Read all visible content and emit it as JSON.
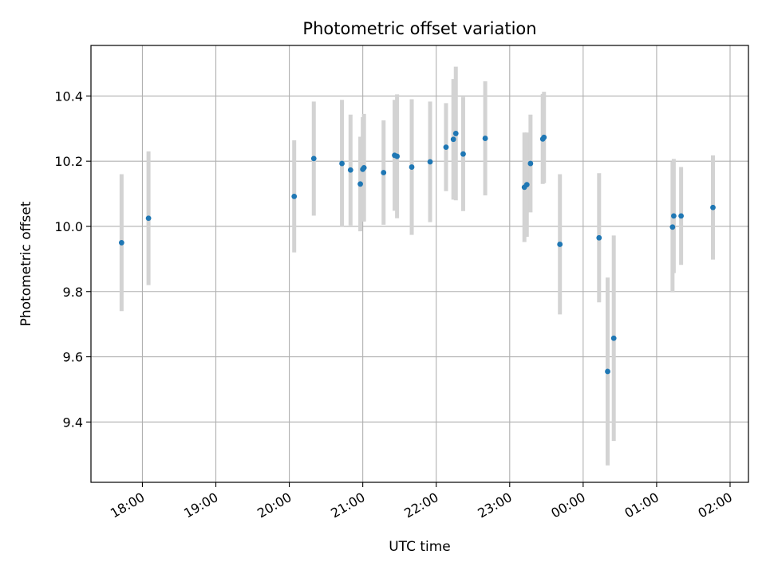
{
  "chart_data": {
    "type": "scatter",
    "title": "Photometric offset variation",
    "xlabel": "UTC time",
    "ylabel": "Photometric offset",
    "x_axis": "time (hours after 18:00 UTC; values past 24:00 are after midnight)",
    "xlim": [
      17.3,
      26.25
    ],
    "ylim": [
      9.215,
      10.555
    ],
    "grid": true,
    "x_ticks": [
      {
        "value": 18,
        "label": "18:00"
      },
      {
        "value": 19,
        "label": "19:00"
      },
      {
        "value": 20,
        "label": "20:00"
      },
      {
        "value": 21,
        "label": "21:00"
      },
      {
        "value": 22,
        "label": "22:00"
      },
      {
        "value": 23,
        "label": "23:00"
      },
      {
        "value": 24,
        "label": "00:00"
      },
      {
        "value": 25,
        "label": "01:00"
      },
      {
        "value": 26,
        "label": "02:00"
      }
    ],
    "y_ticks": [
      {
        "value": 9.4,
        "label": "9.4"
      },
      {
        "value": 9.6,
        "label": "9.6"
      },
      {
        "value": 9.8,
        "label": "9.8"
      },
      {
        "value": 10.0,
        "label": "10.0"
      },
      {
        "value": 10.2,
        "label": "10.2"
      },
      {
        "value": 10.4,
        "label": "10.4"
      }
    ],
    "marker_color": "#1f77b4",
    "errorbar_color": "#d3d3d3",
    "points": [
      {
        "time": "17:43",
        "y": 9.95,
        "err": 0.21
      },
      {
        "time": "18:05",
        "y": 10.025,
        "err": 0.205
      },
      {
        "time": "20:04",
        "y": 10.092,
        "err": 0.172
      },
      {
        "time": "20:20",
        "y": 10.208,
        "err": 0.175
      },
      {
        "time": "20:43",
        "y": 10.193,
        "err": 0.195
      },
      {
        "time": "20:50",
        "y": 10.173,
        "err": 0.17
      },
      {
        "time": "20:58",
        "y": 10.13,
        "err": 0.145
      },
      {
        "time": "21:00",
        "y": 10.175,
        "err": 0.16
      },
      {
        "time": "21:01",
        "y": 10.18,
        "err": 0.165
      },
      {
        "time": "21:17",
        "y": 10.165,
        "err": 0.16
      },
      {
        "time": "21:26",
        "y": 10.218,
        "err": 0.17
      },
      {
        "time": "21:28",
        "y": 10.215,
        "err": 0.19
      },
      {
        "time": "21:40",
        "y": 10.182,
        "err": 0.208
      },
      {
        "time": "21:55",
        "y": 10.198,
        "err": 0.185
      },
      {
        "time": "22:08",
        "y": 10.243,
        "err": 0.135
      },
      {
        "time": "22:14",
        "y": 10.267,
        "err": 0.185
      },
      {
        "time": "22:16",
        "y": 10.285,
        "err": 0.205
      },
      {
        "time": "22:22",
        "y": 10.222,
        "err": 0.175
      },
      {
        "time": "22:40",
        "y": 10.27,
        "err": 0.175
      },
      {
        "time": "23:12",
        "y": 10.12,
        "err": 0.168
      },
      {
        "time": "23:14",
        "y": 10.128,
        "err": 0.16
      },
      {
        "time": "23:17",
        "y": 10.193,
        "err": 0.15
      },
      {
        "time": "23:27",
        "y": 10.268,
        "err": 0.138
      },
      {
        "time": "23:28",
        "y": 10.273,
        "err": 0.14
      },
      {
        "time": "23:41",
        "y": 9.945,
        "err": 0.215
      },
      {
        "time": "00:13",
        "y": 9.965,
        "err": 0.198
      },
      {
        "time": "00:20",
        "y": 9.555,
        "err": 0.288
      },
      {
        "time": "00:25",
        "y": 9.657,
        "err": 0.315
      },
      {
        "time": "01:13",
        "y": 9.998,
        "err": 0.2
      },
      {
        "time": "01:14",
        "y": 10.032,
        "err": 0.175
      },
      {
        "time": "01:20",
        "y": 10.032,
        "err": 0.15
      },
      {
        "time": "01:46",
        "y": 10.058,
        "err": 0.16
      }
    ]
  }
}
